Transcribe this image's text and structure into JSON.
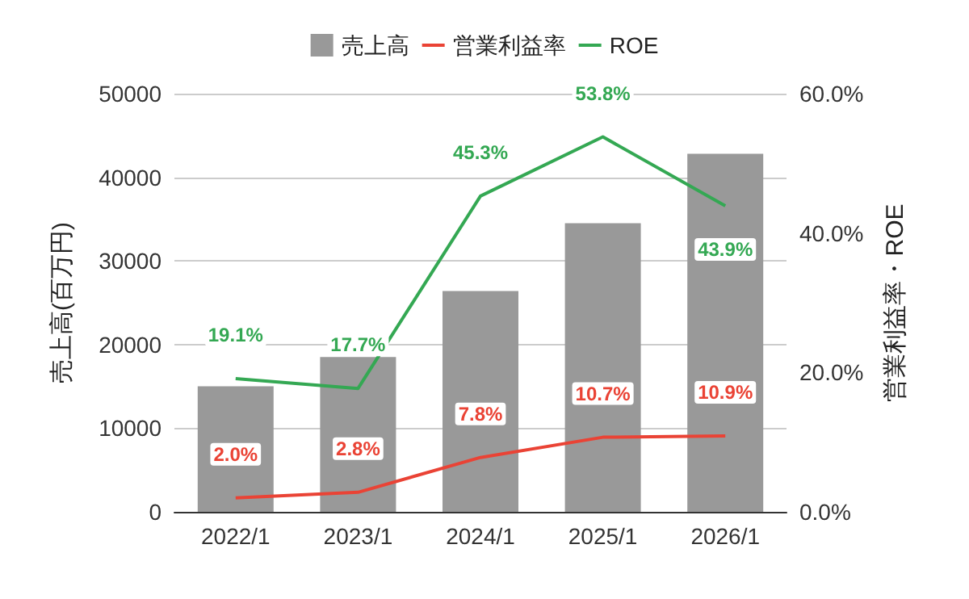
{
  "chart_data": {
    "type": "bar",
    "categories": [
      "2022/1",
      "2023/1",
      "2024/1",
      "2025/1",
      "2026/1"
    ],
    "series": [
      {
        "name": "売上高",
        "color": "#999999",
        "values": [
          15000,
          18500,
          26400,
          34500,
          42800
        ]
      },
      {
        "name": "営業利益率",
        "type": "line",
        "axis": "y2",
        "color": "#ea4335",
        "values": [
          2.0,
          2.8,
          7.8,
          10.7,
          10.9
        ],
        "value_labels": [
          "2.0%",
          "2.8%",
          "7.8%",
          "10.7%",
          "10.9%"
        ]
      },
      {
        "name": "ROE",
        "type": "line",
        "axis": "y2",
        "color": "#34a853",
        "values": [
          19.1,
          17.7,
          45.3,
          53.8,
          43.9
        ],
        "value_labels": [
          "19.1%",
          "17.7%",
          "45.3%",
          "53.8%",
          "43.9%"
        ]
      }
    ],
    "ylabel": "売上高(百万円)",
    "y2label": "営業利益率・ROE",
    "ylim": [
      0,
      50000
    ],
    "yticks": [
      0,
      10000,
      20000,
      30000,
      40000,
      50000
    ],
    "y2lim": [
      0,
      60
    ],
    "y2ticks": [
      {
        "value": 0,
        "label": "0.0%"
      },
      {
        "value": 20,
        "label": "20.0%"
      },
      {
        "value": 40,
        "label": "40.0%"
      },
      {
        "value": 60,
        "label": "60.0%"
      }
    ],
    "grid": "y",
    "legend": "top",
    "marker": "none"
  }
}
